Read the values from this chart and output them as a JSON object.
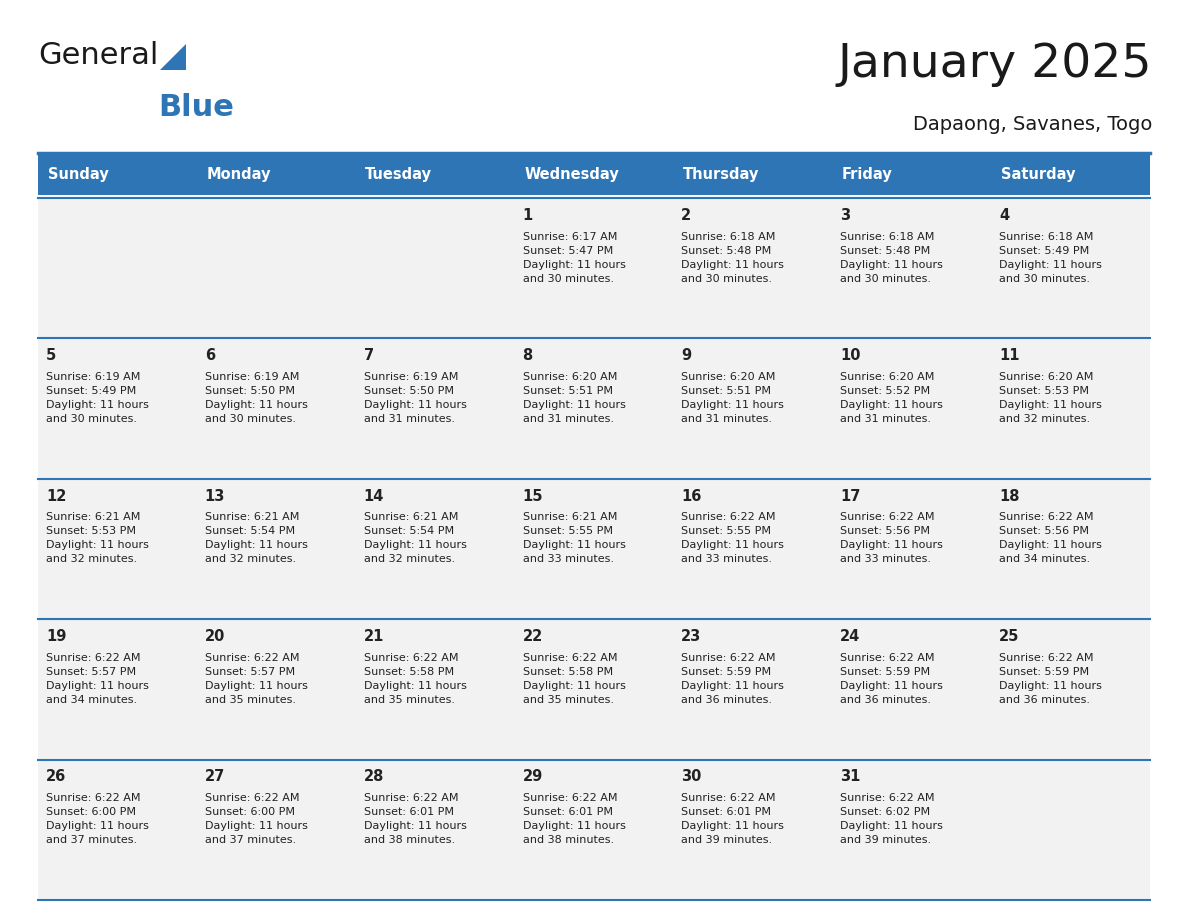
{
  "title": "January 2025",
  "subtitle": "Dapaong, Savanes, Togo",
  "header_bg": "#2E75B6",
  "header_text": "#FFFFFF",
  "cell_bg": "#F2F2F2",
  "row_line_color": "#2E75B6",
  "days_of_week": [
    "Sunday",
    "Monday",
    "Tuesday",
    "Wednesday",
    "Thursday",
    "Friday",
    "Saturday"
  ],
  "weeks": [
    [
      {
        "day": "",
        "info": ""
      },
      {
        "day": "",
        "info": ""
      },
      {
        "day": "",
        "info": ""
      },
      {
        "day": "1",
        "info": "Sunrise: 6:17 AM\nSunset: 5:47 PM\nDaylight: 11 hours\nand 30 minutes."
      },
      {
        "day": "2",
        "info": "Sunrise: 6:18 AM\nSunset: 5:48 PM\nDaylight: 11 hours\nand 30 minutes."
      },
      {
        "day": "3",
        "info": "Sunrise: 6:18 AM\nSunset: 5:48 PM\nDaylight: 11 hours\nand 30 minutes."
      },
      {
        "day": "4",
        "info": "Sunrise: 6:18 AM\nSunset: 5:49 PM\nDaylight: 11 hours\nand 30 minutes."
      }
    ],
    [
      {
        "day": "5",
        "info": "Sunrise: 6:19 AM\nSunset: 5:49 PM\nDaylight: 11 hours\nand 30 minutes."
      },
      {
        "day": "6",
        "info": "Sunrise: 6:19 AM\nSunset: 5:50 PM\nDaylight: 11 hours\nand 30 minutes."
      },
      {
        "day": "7",
        "info": "Sunrise: 6:19 AM\nSunset: 5:50 PM\nDaylight: 11 hours\nand 31 minutes."
      },
      {
        "day": "8",
        "info": "Sunrise: 6:20 AM\nSunset: 5:51 PM\nDaylight: 11 hours\nand 31 minutes."
      },
      {
        "day": "9",
        "info": "Sunrise: 6:20 AM\nSunset: 5:51 PM\nDaylight: 11 hours\nand 31 minutes."
      },
      {
        "day": "10",
        "info": "Sunrise: 6:20 AM\nSunset: 5:52 PM\nDaylight: 11 hours\nand 31 minutes."
      },
      {
        "day": "11",
        "info": "Sunrise: 6:20 AM\nSunset: 5:53 PM\nDaylight: 11 hours\nand 32 minutes."
      }
    ],
    [
      {
        "day": "12",
        "info": "Sunrise: 6:21 AM\nSunset: 5:53 PM\nDaylight: 11 hours\nand 32 minutes."
      },
      {
        "day": "13",
        "info": "Sunrise: 6:21 AM\nSunset: 5:54 PM\nDaylight: 11 hours\nand 32 minutes."
      },
      {
        "day": "14",
        "info": "Sunrise: 6:21 AM\nSunset: 5:54 PM\nDaylight: 11 hours\nand 32 minutes."
      },
      {
        "day": "15",
        "info": "Sunrise: 6:21 AM\nSunset: 5:55 PM\nDaylight: 11 hours\nand 33 minutes."
      },
      {
        "day": "16",
        "info": "Sunrise: 6:22 AM\nSunset: 5:55 PM\nDaylight: 11 hours\nand 33 minutes."
      },
      {
        "day": "17",
        "info": "Sunrise: 6:22 AM\nSunset: 5:56 PM\nDaylight: 11 hours\nand 33 minutes."
      },
      {
        "day": "18",
        "info": "Sunrise: 6:22 AM\nSunset: 5:56 PM\nDaylight: 11 hours\nand 34 minutes."
      }
    ],
    [
      {
        "day": "19",
        "info": "Sunrise: 6:22 AM\nSunset: 5:57 PM\nDaylight: 11 hours\nand 34 minutes."
      },
      {
        "day": "20",
        "info": "Sunrise: 6:22 AM\nSunset: 5:57 PM\nDaylight: 11 hours\nand 35 minutes."
      },
      {
        "day": "21",
        "info": "Sunrise: 6:22 AM\nSunset: 5:58 PM\nDaylight: 11 hours\nand 35 minutes."
      },
      {
        "day": "22",
        "info": "Sunrise: 6:22 AM\nSunset: 5:58 PM\nDaylight: 11 hours\nand 35 minutes."
      },
      {
        "day": "23",
        "info": "Sunrise: 6:22 AM\nSunset: 5:59 PM\nDaylight: 11 hours\nand 36 minutes."
      },
      {
        "day": "24",
        "info": "Sunrise: 6:22 AM\nSunset: 5:59 PM\nDaylight: 11 hours\nand 36 minutes."
      },
      {
        "day": "25",
        "info": "Sunrise: 6:22 AM\nSunset: 5:59 PM\nDaylight: 11 hours\nand 36 minutes."
      }
    ],
    [
      {
        "day": "26",
        "info": "Sunrise: 6:22 AM\nSunset: 6:00 PM\nDaylight: 11 hours\nand 37 minutes."
      },
      {
        "day": "27",
        "info": "Sunrise: 6:22 AM\nSunset: 6:00 PM\nDaylight: 11 hours\nand 37 minutes."
      },
      {
        "day": "28",
        "info": "Sunrise: 6:22 AM\nSunset: 6:01 PM\nDaylight: 11 hours\nand 38 minutes."
      },
      {
        "day": "29",
        "info": "Sunrise: 6:22 AM\nSunset: 6:01 PM\nDaylight: 11 hours\nand 38 minutes."
      },
      {
        "day": "30",
        "info": "Sunrise: 6:22 AM\nSunset: 6:01 PM\nDaylight: 11 hours\nand 39 minutes."
      },
      {
        "day": "31",
        "info": "Sunrise: 6:22 AM\nSunset: 6:02 PM\nDaylight: 11 hours\nand 39 minutes."
      },
      {
        "day": "",
        "info": ""
      }
    ]
  ],
  "logo_color_general": "#1a1a1a",
  "logo_color_blue": "#2E75B6",
  "title_color": "#1a1a1a",
  "subtitle_color": "#1a1a1a",
  "fig_width": 11.88,
  "fig_height": 9.18,
  "dpi": 100
}
